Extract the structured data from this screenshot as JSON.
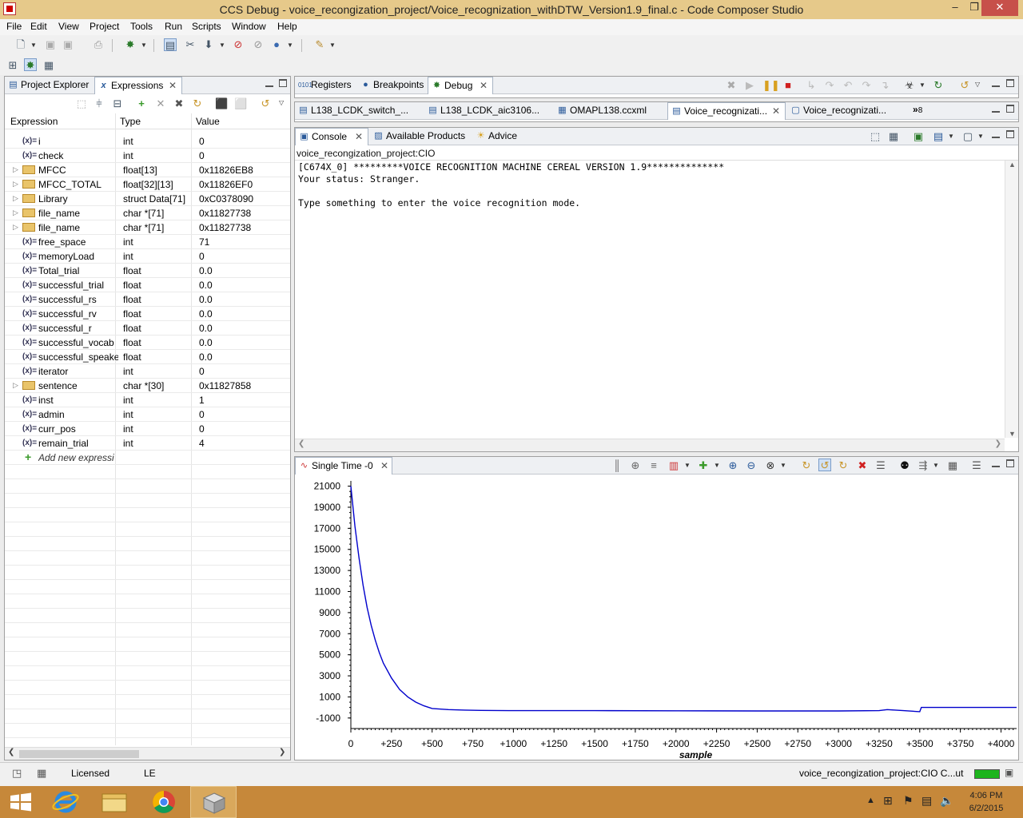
{
  "window": {
    "title": "CCS Debug - voice_recongization_project/Voice_recognization_withDTW_Version1.9_final.c - Code Composer Studio"
  },
  "menu": [
    "File",
    "Edit",
    "View",
    "Project",
    "Tools",
    "Run",
    "Scripts",
    "Window",
    "Help"
  ],
  "left_panel": {
    "tabs": [
      {
        "label": "Project Explorer",
        "icon": "project-explorer-icon"
      },
      {
        "label": "Expressions",
        "icon": "expressions-icon",
        "active": true
      }
    ],
    "columns": [
      "Expression",
      "Type",
      "Value"
    ],
    "rows": [
      {
        "name": "i",
        "type": "int",
        "value": "0",
        "kind": "var"
      },
      {
        "name": "check",
        "type": "int",
        "value": "0",
        "kind": "var"
      },
      {
        "name": "MFCC",
        "type": "float[13]",
        "value": "0x11826EB8",
        "kind": "array"
      },
      {
        "name": "MFCC_TOTAL",
        "type": "float[32][13]",
        "value": "0x11826EF0",
        "kind": "array"
      },
      {
        "name": "Library",
        "type": "struct Data[71]",
        "value": "0xC0378090",
        "kind": "array"
      },
      {
        "name": "file_name",
        "type": "char *[71]",
        "value": "0x11827738",
        "kind": "array"
      },
      {
        "name": "file_name",
        "type": "char *[71]",
        "value": "0x11827738",
        "kind": "array"
      },
      {
        "name": "free_space",
        "type": "int",
        "value": "71",
        "kind": "var"
      },
      {
        "name": "memoryLoad",
        "type": "int",
        "value": "0",
        "kind": "var"
      },
      {
        "name": "Total_trial",
        "type": "float",
        "value": "0.0",
        "kind": "var"
      },
      {
        "name": "successful_trial",
        "type": "float",
        "value": "0.0",
        "kind": "var"
      },
      {
        "name": "successful_rs",
        "type": "float",
        "value": "0.0",
        "kind": "var"
      },
      {
        "name": "successful_rv",
        "type": "float",
        "value": "0.0",
        "kind": "var"
      },
      {
        "name": "successful_r",
        "type": "float",
        "value": "0.0",
        "kind": "var"
      },
      {
        "name": "successful_vocab",
        "type": "float",
        "value": "0.0",
        "kind": "var"
      },
      {
        "name": "successful_speake",
        "type": "float",
        "value": "0.0",
        "kind": "var"
      },
      {
        "name": "iterator",
        "type": "int",
        "value": "0",
        "kind": "var"
      },
      {
        "name": "sentence",
        "type": "char *[30]",
        "value": "0x11827858",
        "kind": "array"
      },
      {
        "name": "inst",
        "type": "int",
        "value": "1",
        "kind": "var"
      },
      {
        "name": "admin",
        "type": "int",
        "value": "0",
        "kind": "var"
      },
      {
        "name": "curr_pos",
        "type": "int",
        "value": "0",
        "kind": "var"
      },
      {
        "name": "remain_trial",
        "type": "int",
        "value": "4",
        "kind": "var"
      }
    ],
    "add_label": "Add new expressi"
  },
  "debug_tabs": [
    "Registers",
    "Breakpoints",
    "Debug"
  ],
  "editor_tabs": [
    "L138_LCDK_switch_...",
    "L138_LCDK_aic3106...",
    "OMAPL138.ccxml",
    "Voice_recognizati...",
    "Voice_recognizati..."
  ],
  "editor_overflow": "8",
  "console_tabs": [
    "Console",
    "Available Products",
    "Advice"
  ],
  "console": {
    "path": "voice_recongization_project:CIO",
    "lines": [
      "[C674X_0] *********VOICE RECOGNITION MACHINE CEREAL VERSION 1.9**************",
      "Your status: Stranger.",
      "",
      "Type something to enter the voice recognition mode."
    ]
  },
  "graph": {
    "tab_label": "Single Time -0",
    "chart_data": {
      "type": "line",
      "xlabel": "sample",
      "ylabel": "",
      "title": "",
      "xlim": [
        0,
        4096
      ],
      "ylim": [
        -2000,
        21500
      ],
      "x_ticks": [
        "0",
        "+250",
        "+500",
        "+750",
        "+1000",
        "+1250",
        "+1500",
        "+1750",
        "+2000",
        "+2250",
        "+2500",
        "+2750",
        "+3000",
        "+3250",
        "+3500",
        "+3750",
        "+4000"
      ],
      "x_tick_values": [
        0,
        250,
        500,
        750,
        1000,
        1250,
        1500,
        1750,
        2000,
        2250,
        2500,
        2750,
        3000,
        3250,
        3500,
        3750,
        4000
      ],
      "y_ticks": [
        "21000",
        "19000",
        "17000",
        "15000",
        "13000",
        "11000",
        "9000",
        "7000",
        "5000",
        "3000",
        "1000",
        "-1000"
      ],
      "y_tick_values": [
        21000,
        19000,
        17000,
        15000,
        13000,
        11000,
        9000,
        7000,
        5000,
        3000,
        1000,
        -1000
      ],
      "series": [
        {
          "color": "#0000cc",
          "x": [
            0,
            25,
            50,
            75,
            100,
            125,
            150,
            175,
            200,
            250,
            300,
            350,
            400,
            450,
            500,
            600,
            700,
            800,
            1000,
            1500,
            2000,
            2500,
            3000,
            3250,
            3300,
            3400,
            3500,
            3510,
            4096
          ],
          "y": [
            21000,
            17200,
            14200,
            11600,
            9500,
            7800,
            6400,
            5200,
            4200,
            2800,
            1700,
            1000,
            500,
            150,
            -100,
            -200,
            -250,
            -280,
            -300,
            -300,
            -320,
            -330,
            -330,
            -300,
            -200,
            -300,
            -400,
            0,
            0
          ]
        }
      ]
    }
  },
  "status": {
    "licensed": "Licensed",
    "endian": "LE",
    "progress_label": "voice_recongization_project:CIO C...ut"
  },
  "clock": {
    "time": "4:06 PM",
    "date": "6/2/2015"
  }
}
